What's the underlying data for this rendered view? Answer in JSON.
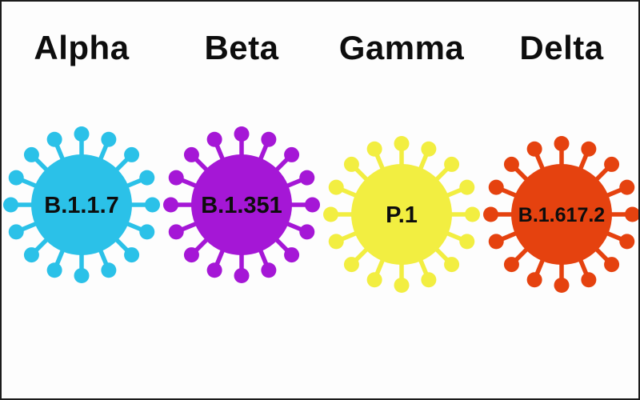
{
  "page": {
    "background": "#fdfdfd",
    "frame_color": "#1c1c1c",
    "heading_color": "#0d0d0d",
    "label_color": "#0d0d0d"
  },
  "variants": [
    {
      "name": "Alpha",
      "lineage": "B.1.1.7",
      "color": "#2bc1e8"
    },
    {
      "name": "Beta",
      "lineage": "B.1.351",
      "color": "#a517d6"
    },
    {
      "name": "Gamma",
      "lineage": "P.1",
      "color": "#f2ee41"
    },
    {
      "name": "Delta",
      "lineage": "B.1.617.2",
      "color": "#e5420f"
    }
  ]
}
